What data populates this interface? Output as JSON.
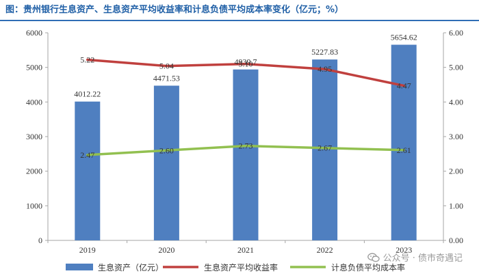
{
  "page": {
    "title": "图：贵州银行生息资产、生息资产平均收益率和计息负债平均成本率变化（亿元；%）",
    "watermark": "公众号 · 债市奇遇记"
  },
  "colors": {
    "title": "#1f5fa6",
    "bar": "#4f7fc0",
    "yield_line": "#c0403e",
    "cost_line": "#92c050"
  },
  "chart_data": {
    "type": "bar+line",
    "title": "贵州银行生息资产、生息资产平均收益率和计息负债平均成本率变化（亿元；%）",
    "categories": [
      "2019",
      "2020",
      "2021",
      "2022",
      "2023"
    ],
    "series": [
      {
        "name": "生息资产（亿元）",
        "type": "bar",
        "axis": "left",
        "values": [
          4012.22,
          4471.53,
          4939.7,
          5227.83,
          5654.62
        ],
        "labels": [
          "4012.22",
          "4471.53",
          "4939.7",
          "5227.83",
          "5654.62"
        ]
      },
      {
        "name": "生息资产平均收益率",
        "type": "line",
        "axis": "right",
        "values": [
          5.22,
          5.04,
          5.1,
          4.95,
          4.47
        ],
        "labels": [
          "5.22",
          "5.04",
          "5.10",
          "4.95",
          "4.47"
        ]
      },
      {
        "name": "计息负债平均成本率",
        "type": "line",
        "axis": "right",
        "values": [
          2.47,
          2.6,
          2.73,
          2.67,
          2.61
        ],
        "labels": [
          "2.47",
          "2.60",
          "2.73",
          "2.67",
          "2.61"
        ]
      }
    ],
    "y_left": {
      "min": 0,
      "max": 6000,
      "ticks": [
        "0",
        "1000",
        "2000",
        "3000",
        "4000",
        "5000",
        "6000"
      ]
    },
    "y_right": {
      "min": 0,
      "max": 6,
      "ticks": [
        "0.00",
        "1.00",
        "2.00",
        "3.00",
        "4.00",
        "5.00",
        "6.00"
      ]
    },
    "grid": false,
    "legend": "bottom"
  }
}
